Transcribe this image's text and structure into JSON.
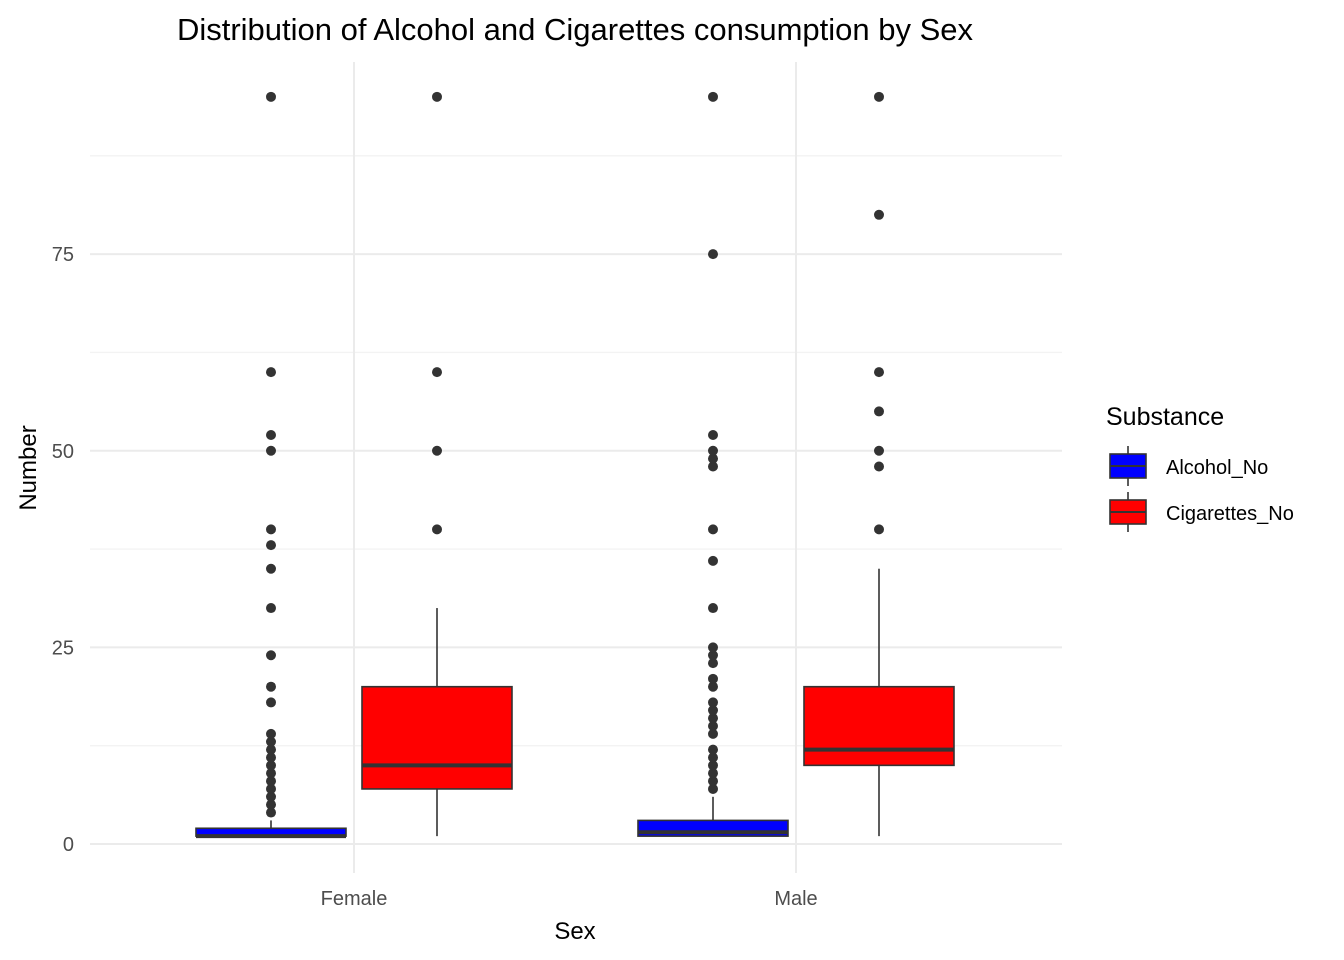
{
  "chart_data": {
    "type": "boxplot",
    "title": "Distribution of Alcohol and Cigarettes consumption by Sex",
    "xlabel": "Sex",
    "ylabel": "Number",
    "categories": [
      "Female",
      "Male"
    ],
    "ylim": [
      -7,
      100
    ],
    "yticks": [
      0,
      25,
      50,
      75
    ],
    "yticks_labels": [
      "0",
      "25",
      "50",
      "75"
    ],
    "grid": true,
    "legend": {
      "title": "Substance",
      "position": "right"
    },
    "series": [
      {
        "name": "Alcohol_No",
        "color": "#0000ff",
        "boxes": [
          {
            "category": "Female",
            "min": 1,
            "q1": 1,
            "median": 1,
            "q3": 2,
            "max": 3,
            "outliers": [
              4,
              5,
              6,
              7,
              8,
              9,
              10,
              11,
              12,
              13,
              14,
              18,
              20,
              24,
              30,
              35,
              38,
              40,
              50,
              52,
              60,
              95
            ]
          },
          {
            "category": "Male",
            "min": 1,
            "q1": 1,
            "median": 1.5,
            "q3": 3,
            "max": 6,
            "outliers": [
              7,
              8,
              9,
              10,
              11,
              12,
              14,
              15,
              16,
              17,
              18,
              20,
              21,
              23,
              24,
              25,
              30,
              36,
              40,
              48,
              49,
              50,
              52,
              75,
              95
            ]
          }
        ]
      },
      {
        "name": "Cigarettes_No",
        "color": "#ff0000",
        "boxes": [
          {
            "category": "Female",
            "min": 1,
            "q1": 7,
            "median": 10,
            "q3": 20,
            "max": 30,
            "outliers": [
              40,
              50,
              60,
              95
            ]
          },
          {
            "category": "Male",
            "min": 1,
            "q1": 10,
            "median": 12,
            "q3": 20,
            "max": 35,
            "outliers": [
              40,
              48,
              50,
              55,
              60,
              80,
              95
            ]
          }
        ]
      }
    ]
  }
}
